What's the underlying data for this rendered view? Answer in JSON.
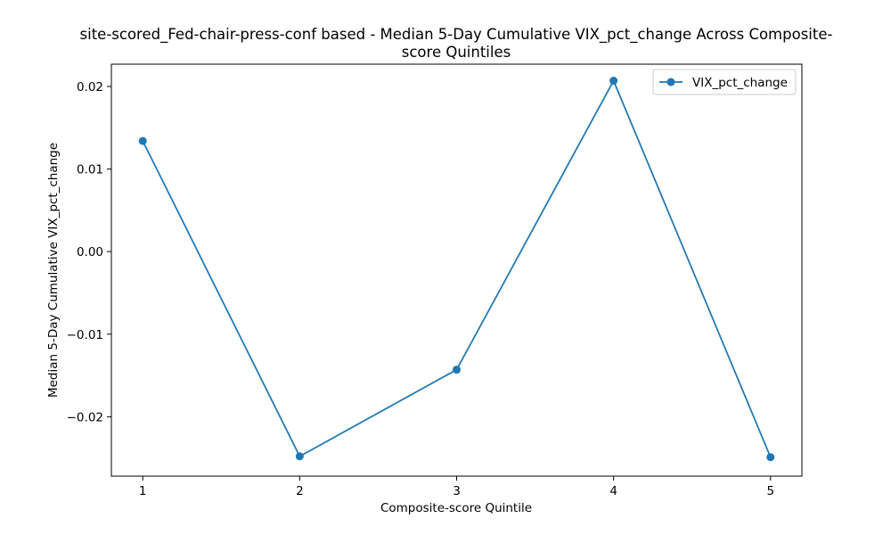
{
  "chart_data": {
    "type": "line",
    "title_line1": "site-scored_Fed-chair-press-conf based - Median 5-Day Cumulative VIX_pct_change Across Composite-",
    "title_line2": "score Quintiles",
    "xlabel": "Composite-score Quintile",
    "ylabel": "Median 5-Day Cumulative VIX_pct_change",
    "x": [
      1,
      2,
      3,
      4,
      5
    ],
    "x_tick_labels": [
      "1",
      "2",
      "3",
      "4",
      "5"
    ],
    "xlim": [
      0.8,
      5.2
    ],
    "ylim": [
      -0.0272,
      0.0227
    ],
    "y_ticks": [
      -0.02,
      -0.01,
      0.0,
      0.01,
      0.02
    ],
    "y_tick_labels": [
      "−0.02",
      "−0.01",
      "0.00",
      "0.01",
      "0.02"
    ],
    "grid": false,
    "legend_position": "top-right",
    "series": [
      {
        "name": "VIX_pct_change",
        "color": "#1f77b4",
        "marker": "circle",
        "values": [
          0.0134,
          -0.0248,
          -0.0143,
          0.0207,
          -0.0249
        ]
      }
    ]
  }
}
